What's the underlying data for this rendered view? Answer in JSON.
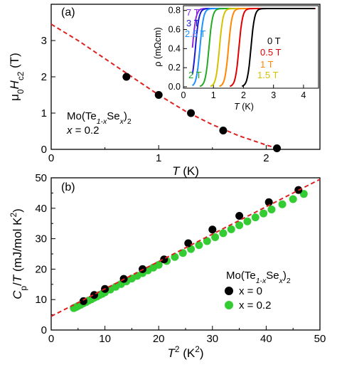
{
  "chart_data": [
    {
      "panel_label": "(a)",
      "type": "scatter",
      "xlabel": {
        "italic": "T",
        "unit": " (K)"
      },
      "ylabel": {
        "prefix": "μ",
        "prefix_sub": "0",
        "var": "H",
        "var_sub": "c2",
        "unit": " (T)"
      },
      "xlim": [
        0,
        2.5
      ],
      "ylim": [
        0,
        4
      ],
      "xticks": [
        0,
        1,
        2
      ],
      "yticks": [
        0,
        1,
        2,
        3
      ],
      "grid": false,
      "annotation": {
        "line1": "Mo(Te",
        "line1_sub": "1-x",
        "line1_mid": "Se",
        "line1_sub2": "x",
        "line1_end": ")",
        "line1_sub3": "2",
        "line2": "x = 0.2"
      },
      "series": [
        {
          "kind": "points",
          "color": "#000000",
          "x": [
            0.7,
            1.0,
            1.3,
            1.6,
            2.1
          ],
          "y": [
            2.0,
            1.5,
            1.0,
            0.52,
            0.03
          ]
        },
        {
          "kind": "fit-dashed",
          "color": "#dd2222",
          "x": [
            0,
            0.25,
            0.5,
            0.75,
            1.0,
            1.25,
            1.5,
            1.75,
            2.0,
            2.1
          ],
          "y": [
            3.45,
            3.0,
            2.5,
            2.0,
            1.5,
            1.05,
            0.68,
            0.37,
            0.12,
            0.03
          ]
        }
      ]
    },
    {
      "panel_label": "inset",
      "type": "line",
      "xlabel": {
        "italic": "T",
        "unit": " (K)"
      },
      "ylabel": {
        "text": "ρ (mΩcm)"
      },
      "xlim": [
        0,
        4.5
      ],
      "ylim": [
        0,
        0.85
      ],
      "xticks": [
        0,
        1,
        2,
        3,
        4
      ],
      "yticks": [
        0.0,
        0.2,
        0.4,
        0.6,
        0.8
      ],
      "curves": [
        {
          "label": "7 T",
          "color": "#8a2be2",
          "tc": 0.3
        },
        {
          "label": "3 T",
          "color": "#1c1cd0",
          "tc": 0.4
        },
        {
          "label": "2.5 T",
          "color": "#1e90ff",
          "tc": 0.55
        },
        {
          "label": "2 T",
          "color": "#22aa22",
          "tc": 0.85
        },
        {
          "label": "1.5 T",
          "color": "#d4c200",
          "tc": 1.2
        },
        {
          "label": "1 T",
          "color": "#ff8800",
          "tc": 1.5
        },
        {
          "label": "0.5 T",
          "color": "#e00000",
          "tc": 1.85
        },
        {
          "label": "0 T",
          "color": "#000000",
          "tc": 2.25
        }
      ],
      "rho_normal": 0.82
    },
    {
      "panel_label": "(b)",
      "type": "scatter",
      "xlabel": {
        "var": "T",
        "sup": "2",
        "unit": " (K",
        "unit_sup": "2",
        "unit_end": ")"
      },
      "ylabel": {
        "var": "C",
        "var_sub": "p",
        "slash": "/",
        "var2": "T",
        "unit": " (mJ/mol K",
        "unit_sup": "2",
        "unit_end": ")"
      },
      "xlim": [
        0,
        50
      ],
      "ylim": [
        0,
        50
      ],
      "xticks": [
        0,
        10,
        20,
        30,
        40,
        50
      ],
      "yticks": [
        0,
        10,
        20,
        30,
        40,
        50
      ],
      "grid": false,
      "legend": {
        "title": "Mo(Te",
        "title_sub": "1-x",
        "title_mid": "Se",
        "title_sub2": "x",
        "title_end": ")",
        "title_sub3": "2",
        "position": "lower-right",
        "entries": [
          {
            "label": "x = 0",
            "color": "#000000"
          },
          {
            "label": "x = 0.2",
            "color": "#33cc33"
          }
        ]
      },
      "series": [
        {
          "name": "x = 0",
          "color": "#000000",
          "x": [
            6,
            8,
            10,
            13.5,
            17,
            21,
            25.5,
            30,
            35,
            40.5,
            46
          ],
          "y": [
            9.5,
            11.5,
            13.5,
            16.8,
            20,
            23.2,
            28.5,
            33,
            37.5,
            42,
            46
          ]
        },
        {
          "name": "x = 0.2",
          "color": "#33cc33",
          "x": [
            4.2,
            4.6,
            5,
            5.5,
            6,
            6.5,
            7,
            7.5,
            8,
            8.5,
            9,
            9.5,
            10,
            11,
            12,
            13,
            14,
            15,
            16,
            17,
            18,
            19,
            20,
            21.5,
            23,
            24.5,
            26,
            27.5,
            29,
            30.5,
            32,
            33.5,
            35,
            36.5,
            38,
            39.5,
            41,
            43,
            45,
            47
          ],
          "y": [
            7.2,
            7.5,
            7.9,
            8.3,
            8.8,
            9.2,
            9.7,
            10.1,
            10.6,
            11.0,
            11.5,
            11.9,
            12.4,
            13.3,
            14.2,
            15.1,
            16.0,
            16.9,
            17.8,
            18.7,
            19.6,
            20.5,
            21.4,
            22.7,
            24.0,
            25.3,
            26.6,
            27.9,
            29.2,
            30.5,
            31.8,
            33.1,
            34.4,
            35.7,
            37.0,
            38.3,
            39.6,
            41.3,
            43.0,
            44.7
          ]
        },
        {
          "name": "",
          "kind": "fit-dashed",
          "color": "#dd2222",
          "x": [
            0,
            50
          ],
          "y": [
            4.5,
            49.5
          ]
        }
      ]
    }
  ]
}
